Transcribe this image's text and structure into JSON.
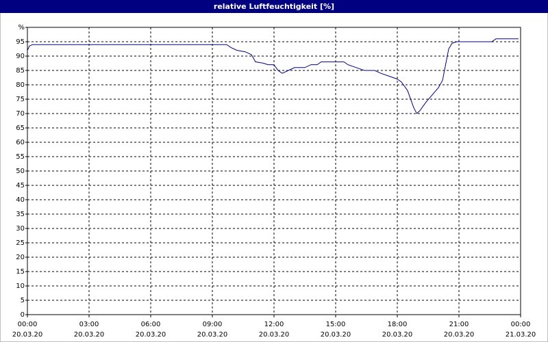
{
  "chart_data": {
    "type": "line",
    "title": "relative Luftfeuchtigkeit [%]",
    "x": [
      0,
      0.1,
      0.25,
      9.7,
      9.9,
      10.2,
      10.6,
      10.9,
      11.1,
      11.5,
      11.7,
      12.0,
      12.2,
      12.4,
      12.7,
      13.0,
      13.5,
      13.8,
      14.1,
      14.3,
      15.4,
      15.6,
      16.0,
      16.4,
      16.9,
      17.2,
      17.6,
      18.0,
      18.2,
      18.5,
      18.8,
      18.95,
      19.1,
      19.4,
      19.7,
      20.0,
      20.2,
      20.35,
      20.5,
      20.67,
      20.9,
      22.6,
      22.8,
      23.9
    ],
    "series": [
      {
        "name": "relative Luftfeuchtigkeit",
        "color": "#000080",
        "values": [
          92,
          93.5,
          94,
          94,
          93,
          92,
          91.5,
          90.5,
          88,
          87.5,
          87,
          87,
          85,
          84,
          85,
          86,
          86,
          87,
          87,
          88,
          88,
          87,
          86,
          85,
          85,
          84,
          83,
          82,
          81,
          78,
          72,
          70,
          71,
          74,
          76.5,
          79,
          81.5,
          87,
          92.5,
          94.5,
          95,
          95,
          96,
          96
        ]
      }
    ],
    "xlim": [
      0,
      24
    ],
    "xticks": [
      {
        "value": 0,
        "label": "00:00",
        "date": "20.03.20"
      },
      {
        "value": 3,
        "label": "03:00",
        "date": "20.03.20"
      },
      {
        "value": 6,
        "label": "06:00",
        "date": "20.03.20"
      },
      {
        "value": 9,
        "label": "09:00",
        "date": "20.03.20"
      },
      {
        "value": 12,
        "label": "12:00",
        "date": "20.03.20"
      },
      {
        "value": 15,
        "label": "15:00",
        "date": "20.03.20"
      },
      {
        "value": 18,
        "label": "18:00",
        "date": "20.03.20"
      },
      {
        "value": 21,
        "label": "21:00",
        "date": "20.03.20"
      },
      {
        "value": 24,
        "label": "00:00",
        "date": "21.03.20"
      }
    ],
    "ylim": [
      0,
      100
    ],
    "yticks": [
      0,
      5,
      10,
      15,
      20,
      25,
      30,
      35,
      40,
      45,
      50,
      55,
      60,
      65,
      70,
      75,
      80,
      85,
      90,
      95,
      {
        "value": 100,
        "label": "%"
      }
    ],
    "grid": true
  }
}
